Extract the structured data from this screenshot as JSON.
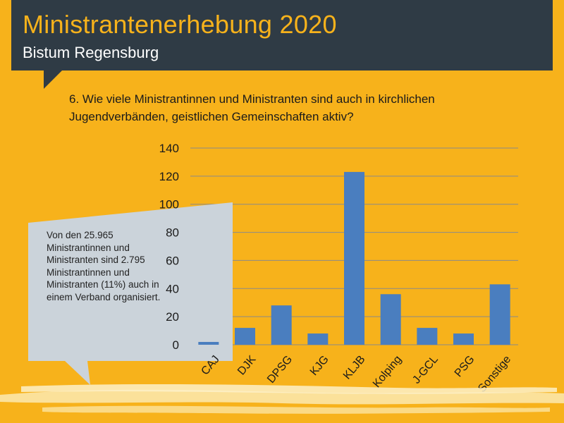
{
  "header": {
    "title": "Ministrantenerhebung 2020",
    "subtitle": "Bistum Regensburg"
  },
  "question": "6. Wie viele Ministrantinnen und Ministranten sind auch in kirchlichen Jugendverbänden, geistlichen Gemeinschaften aktiv?",
  "callout": {
    "text": "Von den 25.965 Ministrantinnen und Ministranten sind 2.795 Ministrantinnen und Ministranten (11%) auch in einem Verband organisiert."
  },
  "colors": {
    "background": "#f7b21b",
    "header": "#2f3b45",
    "bar": "#4a7ebf",
    "callout": "#cbd3da",
    "grid": "#8a8a8a"
  },
  "chart_data": {
    "type": "bar",
    "title": "",
    "xlabel": "",
    "ylabel": "",
    "categories": [
      "CAJ",
      "DJK",
      "DPSG",
      "KJG",
      "KLJB",
      "Kolping",
      "J-GCL",
      "PSG",
      "Sonstige"
    ],
    "values": [
      2,
      12,
      28,
      8,
      123,
      36,
      12,
      8,
      43
    ],
    "ylim": [
      0,
      140
    ],
    "yticks": [
      0,
      20,
      40,
      60,
      80,
      100,
      120,
      140
    ],
    "grid": true,
    "legend": "none"
  }
}
